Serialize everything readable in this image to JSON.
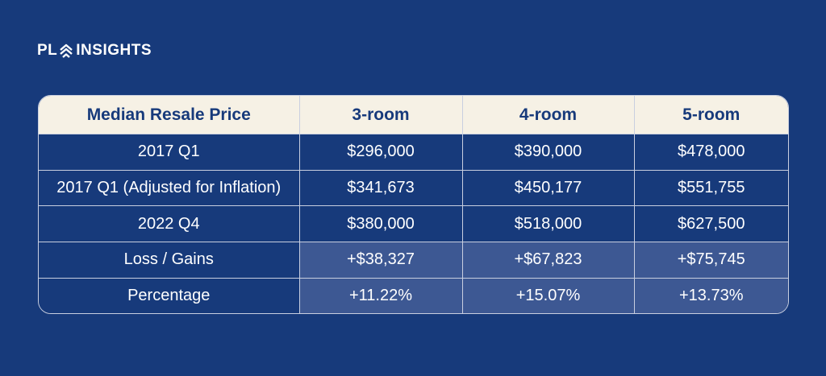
{
  "brand": {
    "name_left": "PL",
    "name_right": "INSIGHTS",
    "logo_icon": "house-roof-icon"
  },
  "colors": {
    "background": "#173a7b",
    "header_bg": "#f6f1e5",
    "header_text": "#173a7b",
    "highlight_cell": "#3d5893",
    "border": "#c9cfe0"
  },
  "chart_data": {
    "type": "table",
    "columns": [
      "Median Resale Price",
      "3-room",
      "4-room",
      "5-room"
    ],
    "rows": [
      {
        "label": "2017 Q1",
        "values": [
          "$296,000",
          "$390,000",
          "$478,000"
        ],
        "highlighted": false
      },
      {
        "label": "2017 Q1 (Adjusted for Inflation)",
        "values": [
          "$341,673",
          "$450,177",
          "$551,755"
        ],
        "highlighted": false
      },
      {
        "label": "2022 Q4",
        "values": [
          "$380,000",
          "$518,000",
          "$627,500"
        ],
        "highlighted": false
      },
      {
        "label": "Loss / Gains",
        "values": [
          "+$38,327",
          "+$67,823",
          "+$75,745"
        ],
        "highlighted": true
      },
      {
        "label": "Percentage",
        "values": [
          "+11.22%",
          "+15.07%",
          "+13.73%"
        ],
        "highlighted": true
      }
    ]
  }
}
